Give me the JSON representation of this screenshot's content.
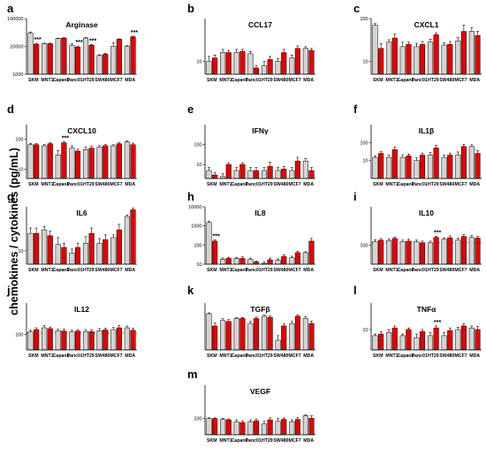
{
  "figure": {
    "ylabel": "chemokines / cytokines (pg/mL)",
    "categories": [
      "SKM",
      "MNT1",
      "Capan1",
      "Panc01",
      "HT29",
      "SW480",
      "MCF7",
      "MDA"
    ],
    "colors": {
      "control": "#d4d4d4",
      "treated": "#e60000",
      "axis": "#000000",
      "dashed": "#000000"
    }
  },
  "chart_data": [
    {
      "type": "bar",
      "letter": "a",
      "title": "Arginase",
      "scale": "log",
      "ylim": [
        1000,
        100000
      ],
      "yticks": [
        {
          "v": 1000,
          "t": "1000"
        },
        {
          "v": 10000,
          "t": "10000"
        },
        {
          "v": 100000,
          "t": "100000"
        }
      ],
      "series": [
        {
          "values": [
            30000,
            12500,
            19000,
            11000,
            20000,
            4700,
            10000,
            10000
          ],
          "err": [
            3000,
            600,
            600,
            1500,
            900,
            300,
            3500,
            700
          ]
        },
        {
          "values": [
            12000,
            12500,
            20000,
            9500,
            11000,
            5200,
            18000,
            22000
          ],
          "err": [
            900,
            600,
            500,
            800,
            600,
            400,
            700,
            1200
          ]
        }
      ],
      "sig": [
        0,
        3,
        4,
        7
      ],
      "sig_label": "***",
      "dashed": null
    },
    {
      "type": "bar",
      "letter": "b",
      "title": "CCL17",
      "scale": "log",
      "ylim": [
        5,
        100
      ],
      "yticks": [
        {
          "v": 10,
          "t": "10"
        }
      ],
      "series": [
        {
          "values": [
            10,
            16,
            16,
            15,
            8,
            10,
            12,
            20
          ],
          "err": [
            3,
            3,
            3,
            2,
            2,
            1.5,
            2,
            2
          ]
        },
        {
          "values": [
            12,
            16,
            17,
            7,
            11,
            16,
            20,
            18
          ],
          "err": [
            2,
            2,
            2,
            1,
            2,
            3,
            3,
            2
          ]
        }
      ],
      "sig": [],
      "sig_label": "***",
      "dashed": null
    },
    {
      "type": "bar",
      "letter": "c",
      "title": "CXCL1",
      "scale": "log",
      "ylim": [
        5,
        100
      ],
      "yticks": [
        {
          "v": 10,
          "t": "10"
        },
        {
          "v": 100,
          "t": "100"
        }
      ],
      "series": [
        {
          "values": [
            70,
            28,
            22,
            22,
            28,
            24,
            30,
            50
          ],
          "err": [
            6,
            4,
            6,
            4,
            5,
            3,
            6,
            12
          ]
        },
        {
          "values": [
            20,
            35,
            25,
            25,
            42,
            25,
            50,
            40
          ],
          "err": [
            6,
            8,
            3,
            4,
            4,
            4,
            20,
            10
          ]
        }
      ],
      "sig": [],
      "sig_label": "***",
      "dashed": null
    },
    {
      "type": "bar",
      "letter": "d",
      "title": "CXCL10",
      "scale": "log",
      "ylim": [
        5,
        300
      ],
      "yticks": [
        {
          "v": 10,
          "t": "10"
        },
        {
          "v": 100,
          "t": "100"
        }
      ],
      "series": [
        {
          "values": [
            65,
            60,
            30,
            50,
            45,
            55,
            60,
            80
          ],
          "err": [
            6,
            6,
            12,
            10,
            10,
            6,
            5,
            6
          ]
        },
        {
          "values": [
            65,
            70,
            75,
            40,
            50,
            60,
            70,
            65
          ],
          "err": [
            6,
            6,
            5,
            6,
            8,
            6,
            8,
            8
          ]
        }
      ],
      "sig": [
        2
      ],
      "sig_label": "***",
      "dashed": null
    },
    {
      "type": "bar",
      "letter": "e",
      "title": "IFNγ",
      "scale": "log",
      "ylim": [
        2,
        1000
      ],
      "yticks": [
        {
          "v": 10,
          "t": "10"
        },
        {
          "v": 100,
          "t": "100"
        }
      ],
      "series": [
        {
          "values": [
            5,
            2.5,
            5,
            5,
            5,
            5,
            5,
            15
          ],
          "err": [
            2,
            1,
            2,
            2,
            2,
            2,
            2,
            5
          ]
        },
        {
          "values": [
            3,
            10,
            10,
            5,
            8,
            6,
            15,
            5
          ],
          "err": [
            1,
            2,
            2,
            2,
            5,
            2,
            8,
            2
          ]
        }
      ],
      "sig": [],
      "sig_label": "***",
      "dashed": null
    },
    {
      "type": "bar",
      "letter": "f",
      "title": "IL1β",
      "scale": "log",
      "ylim": [
        1,
        1000
      ],
      "yticks": [
        {
          "v": 10,
          "t": "10"
        },
        {
          "v": 100,
          "t": "100"
        }
      ],
      "series": [
        {
          "values": [
            15,
            15,
            15,
            10,
            20,
            15,
            20,
            60
          ],
          "err": [
            3,
            5,
            5,
            4,
            8,
            5,
            10,
            15
          ]
        },
        {
          "values": [
            25,
            40,
            18,
            20,
            50,
            20,
            60,
            25
          ],
          "err": [
            6,
            15,
            5,
            6,
            20,
            6,
            20,
            10
          ]
        }
      ],
      "sig": [],
      "sig_label": "***",
      "dashed": null
    },
    {
      "type": "bar",
      "letter": "g",
      "title": "IL6",
      "scale": "log",
      "ylim": [
        5,
        100
      ],
      "yticks": [
        {
          "v": 10,
          "t": "10"
        }
      ],
      "series": [
        {
          "values": [
            25,
            30,
            14,
            9,
            15,
            15,
            20,
            60
          ],
          "err": [
            8,
            6,
            6,
            2,
            6,
            4,
            3,
            5
          ]
        },
        {
          "values": [
            25,
            22,
            12,
            12,
            25,
            18,
            30,
            85
          ],
          "err": [
            8,
            6,
            3,
            3,
            8,
            5,
            10,
            8
          ]
        }
      ],
      "sig": [],
      "sig_label": "***",
      "dashed": null
    },
    {
      "type": "bar",
      "letter": "h",
      "title": "IL8",
      "scale": "log",
      "ylim": [
        10,
        10000
      ],
      "yticks": [
        {
          "v": 10,
          "t": "10"
        },
        {
          "v": 100,
          "t": "100"
        },
        {
          "v": 1000,
          "t": "1000"
        },
        {
          "v": 10000,
          "t": "10000"
        }
      ],
      "series": [
        {
          "values": [
            1500,
            18,
            20,
            18,
            11,
            16,
            22,
            40
          ],
          "err": [
            200,
            3,
            3,
            3,
            2,
            3,
            4,
            5
          ]
        },
        {
          "values": [
            160,
            20,
            20,
            13,
            17,
            25,
            40,
            160
          ],
          "err": [
            30,
            3,
            4,
            2,
            4,
            6,
            8,
            60
          ]
        }
      ],
      "sig": [
        0
      ],
      "sig_label": "***",
      "dashed": null
    },
    {
      "type": "bar",
      "letter": "i",
      "title": "IL10",
      "scale": "log",
      "ylim": [
        10,
        10000
      ],
      "yticks": [
        {
          "v": 100,
          "t": "100"
        }
      ],
      "series": [
        {
          "values": [
            150,
            170,
            150,
            150,
            130,
            200,
            180,
            250
          ],
          "err": [
            40,
            40,
            30,
            30,
            30,
            40,
            50,
            60
          ]
        },
        {
          "values": [
            180,
            220,
            160,
            130,
            250,
            240,
            280,
            230
          ],
          "err": [
            40,
            40,
            40,
            30,
            40,
            60,
            80,
            50
          ]
        }
      ],
      "sig": [
        4
      ],
      "sig_label": "***",
      "dashed": 130
    },
    {
      "type": "bar",
      "letter": "j",
      "title": "IL12",
      "scale": "log",
      "ylim": [
        10,
        10000
      ],
      "yticks": [
        {
          "v": 100,
          "t": "100"
        }
      ],
      "series": [
        {
          "values": [
            140,
            260,
            170,
            140,
            150,
            170,
            200,
            260
          ],
          "err": [
            40,
            100,
            40,
            40,
            50,
            60,
            70,
            80
          ]
        },
        {
          "values": [
            200,
            230,
            160,
            160,
            150,
            190,
            260,
            180
          ],
          "err": [
            60,
            60,
            50,
            40,
            50,
            60,
            100,
            60
          ]
        }
      ],
      "sig": [],
      "sig_label": "***",
      "dashed": 120
    },
    {
      "type": "bar",
      "letter": "k",
      "title": "TGFβ",
      "scale": "log",
      "ylim": [
        1,
        200
      ],
      "yticks": [],
      "series": [
        {
          "values": [
            60,
            28,
            35,
            20,
            45,
            3,
            20,
            35
          ],
          "err": [
            6,
            6,
            4,
            5,
            6,
            2,
            5,
            8
          ]
        },
        {
          "values": [
            15,
            25,
            35,
            35,
            40,
            15,
            45,
            20
          ],
          "err": [
            6,
            6,
            4,
            6,
            6,
            4,
            6,
            6
          ]
        }
      ],
      "sig": [],
      "sig_label": "***",
      "dashed": null
    },
    {
      "type": "bar",
      "letter": "l",
      "title": "TNFα",
      "scale": "log",
      "ylim": [
        1,
        200
      ],
      "yticks": [
        {
          "v": 10,
          "t": "10"
        }
      ],
      "series": [
        {
          "values": [
            5,
            7,
            5,
            4,
            5,
            5,
            10,
            12
          ],
          "err": [
            1,
            3,
            1,
            2,
            2,
            2,
            3,
            3
          ]
        },
        {
          "values": [
            6,
            12,
            10,
            8,
            12,
            9,
            15,
            10
          ],
          "err": [
            2,
            3,
            2,
            2,
            3,
            3,
            4,
            4
          ]
        }
      ],
      "sig": [
        4
      ],
      "sig_label": "***",
      "dashed": null
    },
    {
      "type": "bar",
      "letter": "m",
      "title": "VEGF",
      "scale": "log",
      "ylim": [
        10,
        10000
      ],
      "yticks": [
        {
          "v": 100,
          "t": "100"
        }
      ],
      "series": [
        {
          "values": [
            95,
            85,
            60,
            60,
            45,
            65,
            60,
            140
          ],
          "err": [
            10,
            15,
            20,
            20,
            20,
            30,
            20,
            20
          ]
        },
        {
          "values": [
            95,
            80,
            55,
            70,
            80,
            85,
            85,
            100
          ],
          "err": [
            10,
            12,
            15,
            20,
            25,
            20,
            25,
            40
          ]
        }
      ],
      "sig": [],
      "sig_label": "***",
      "dashed": null
    }
  ]
}
